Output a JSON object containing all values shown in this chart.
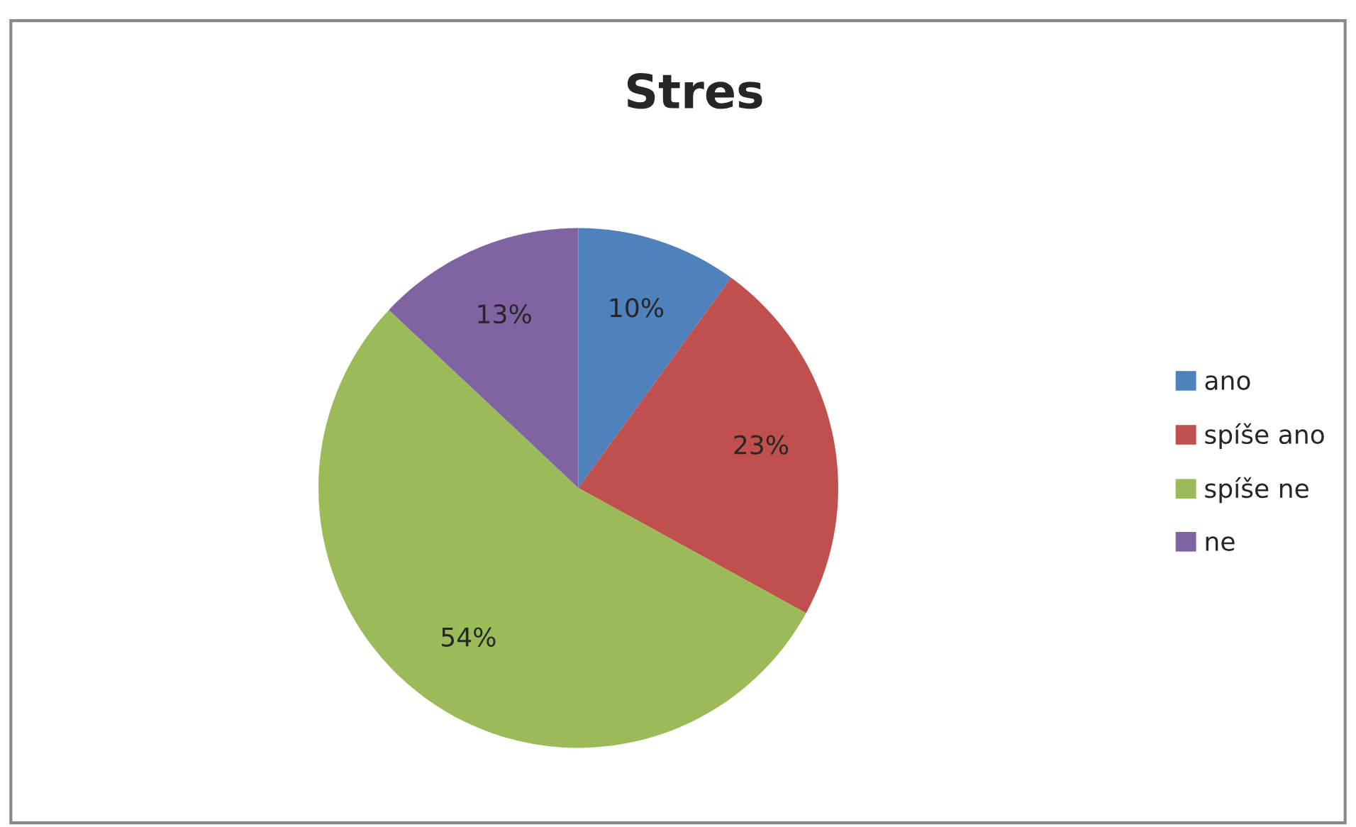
{
  "chart_data": {
    "type": "pie",
    "title": "Stres",
    "categories": [
      "ano",
      "spíše ano",
      "spíše ne",
      "ne"
    ],
    "values": [
      10,
      23,
      54,
      13
    ],
    "colors": [
      "#4f81bd",
      "#c0504d",
      "#9bbb59",
      "#8064a2"
    ],
    "value_labels": [
      "10%",
      "23%",
      "54%",
      "13%"
    ],
    "legend": "right"
  }
}
